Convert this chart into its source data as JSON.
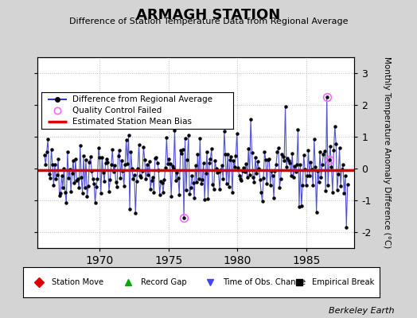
{
  "title": "ARMAGH STATION",
  "subtitle": "Difference of Station Temperature Data from Regional Average",
  "ylabel": "Monthly Temperature Anomaly Difference (°C)",
  "bias_level": -0.05,
  "ylim": [
    -2.5,
    3.5
  ],
  "yticks": [
    -2,
    -1,
    0,
    1,
    2,
    3
  ],
  "xlim": [
    1965.5,
    1988.5
  ],
  "xticks": [
    1970,
    1975,
    1980,
    1985
  ],
  "line_color": "#3333cc",
  "dot_color": "#000000",
  "bias_color": "#dd0000",
  "qc_fail_color": "#ff66ff",
  "background_color": "#d4d4d4",
  "plot_bg_color": "#ffffff",
  "grid_color": "#bbbbbb",
  "berkeley_earth_text": "Berkeley Earth",
  "seed": 42,
  "n_points": 264,
  "start_year": 1966.0,
  "end_year": 1988.0,
  "qc_fail_indices": [
    121,
    245
  ],
  "qc_fail_values": [
    -1.55,
    2.25
  ],
  "qc_fail2_index": 247,
  "qc_fail2_value": 0.28,
  "legend_top_entries": [
    "Difference from Regional Average",
    "Quality Control Failed",
    "Estimated Station Mean Bias"
  ],
  "legend_bot_entries": [
    [
      "Station Move",
      "#dd0000",
      "D"
    ],
    [
      "Record Gap",
      "#00aa00",
      "^"
    ],
    [
      "Time of Obs. Change",
      "#4444ff",
      "v"
    ],
    [
      "Empirical Break",
      "#000000",
      "s"
    ]
  ]
}
